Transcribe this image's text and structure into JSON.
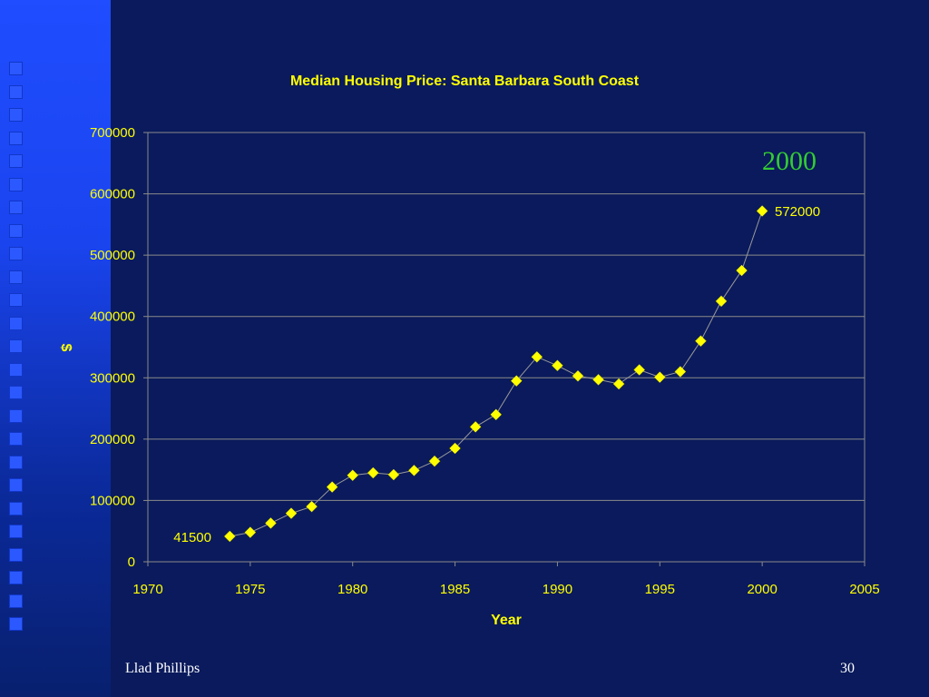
{
  "colors": {
    "background": "#0a1a5c",
    "text_yellow": "#ffff00",
    "marker_yellow": "#ffff00",
    "annotation_green": "#33cc33",
    "gridline": "#8a8a8a",
    "side_band": "#1f4dff"
  },
  "chart_data": {
    "type": "scatter",
    "title": "Median Housing Price: Santa Barbara South Coast",
    "xlabel": "Year",
    "ylabel": "$",
    "xlim": [
      1970,
      2005
    ],
    "ylim": [
      0,
      700000
    ],
    "x_ticks": [
      "1970",
      "1975",
      "1980",
      "1985",
      "1990",
      "1995",
      "2000",
      "2005"
    ],
    "y_ticks": [
      "0",
      "100000",
      "200000",
      "300000",
      "400000",
      "500000",
      "600000",
      "700000"
    ],
    "grid": "horizontal",
    "marker": "diamond",
    "series": [
      {
        "x": [
          1974,
          1975,
          1976,
          1977,
          1978,
          1979,
          1980,
          1981,
          1982,
          1983,
          1984,
          1985,
          1986,
          1987,
          1988,
          1989,
          1990,
          1991,
          1992,
          1993,
          1994,
          1995,
          1996,
          1997,
          1998,
          1999,
          2000
        ],
        "y": [
          41500,
          48000,
          63000,
          79000,
          90000,
          122000,
          141000,
          145000,
          142000,
          149000,
          164000,
          185000,
          220000,
          240000,
          295000,
          334000,
          320000,
          303000,
          297000,
          290000,
          313000,
          301000,
          310000,
          360000,
          425000,
          475000,
          572000
        ]
      }
    ],
    "data_labels": [
      "41500",
      "572000"
    ],
    "annotation": "2000"
  },
  "footer": {
    "author": "Llad Phillips",
    "page_number": "30"
  }
}
